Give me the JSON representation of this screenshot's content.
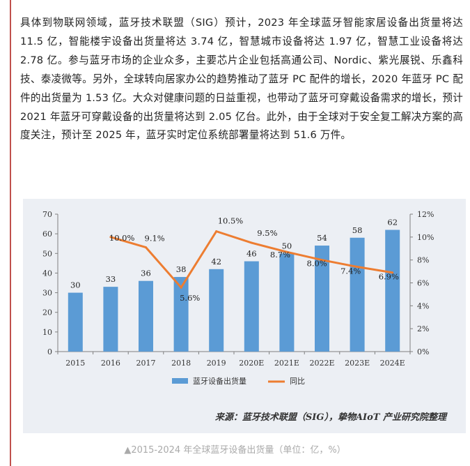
{
  "article": {
    "paragraph": "具体到物联网领域，蓝牙技术联盟（SIG）预计，2023 年全球蓝牙智能家居设备出货量将达 11.5 亿，智能楼宇设备出货量将达 3.74 亿，智慧城市设备将达 1.97 亿，智慧工业设备将达 2.78 亿。参与蓝牙市场的企业众多，主要芯片企业包括高通公司、Nordic、紫光展锐、乐鑫科技、泰凌微等。另外，全球转向居家办公的趋势推动了蓝牙 PC 配件的增长，2020 年蓝牙 PC 配件的出货量为 1.53 亿。大众对健康问题的日益重视，也带动了蓝牙可穿戴设备需求的增长，预计 2021 年蓝牙可穿戴设备的出货量将达到 2.05 亿台。此外，由于全球对于安全复工解决方案的高度关注，预计至 2025 年，蓝牙实时定位系统部署量将达到 51.6 万件。"
  },
  "figure": {
    "source": "来源：蓝牙技术联盟（SIG），挚物AIoT 产业研究院整理",
    "caption": "▲2015-2024 年全球蓝牙设备出货量（单位：亿，%）"
  },
  "chart_data": {
    "type": "bar+line",
    "categories": [
      "2015",
      "2016",
      "2017",
      "2018",
      "2019",
      "2020E",
      "2021E",
      "2022E",
      "2023E",
      "2024E"
    ],
    "series": [
      {
        "name": "蓝牙设备出货量",
        "type": "bar",
        "axis": "left",
        "values": [
          30,
          33,
          36,
          38,
          42,
          46,
          50,
          54,
          58,
          62
        ],
        "color": "#5b9bd5"
      },
      {
        "name": "同比",
        "type": "line",
        "axis": "right",
        "values": [
          null,
          10.0,
          9.1,
          5.6,
          10.5,
          9.5,
          8.7,
          8.0,
          7.4,
          6.9
        ],
        "labels": [
          "",
          "10.0%",
          "9.1%",
          "5.6%",
          "10.5%",
          "9.5%",
          "8.7%",
          "8.0%",
          "7.4%",
          "6.9%"
        ],
        "color": "#ed7d31"
      }
    ],
    "y_left": {
      "min": 0,
      "max": 70,
      "ticks": [
        "0",
        "10",
        "20",
        "30",
        "40",
        "50",
        "60",
        "70"
      ]
    },
    "y_right": {
      "min": 0,
      "max": 12,
      "ticks": [
        "0%",
        "2%",
        "4%",
        "6%",
        "8%",
        "10%",
        "12%"
      ]
    },
    "grid": false,
    "legend": "bottom"
  }
}
